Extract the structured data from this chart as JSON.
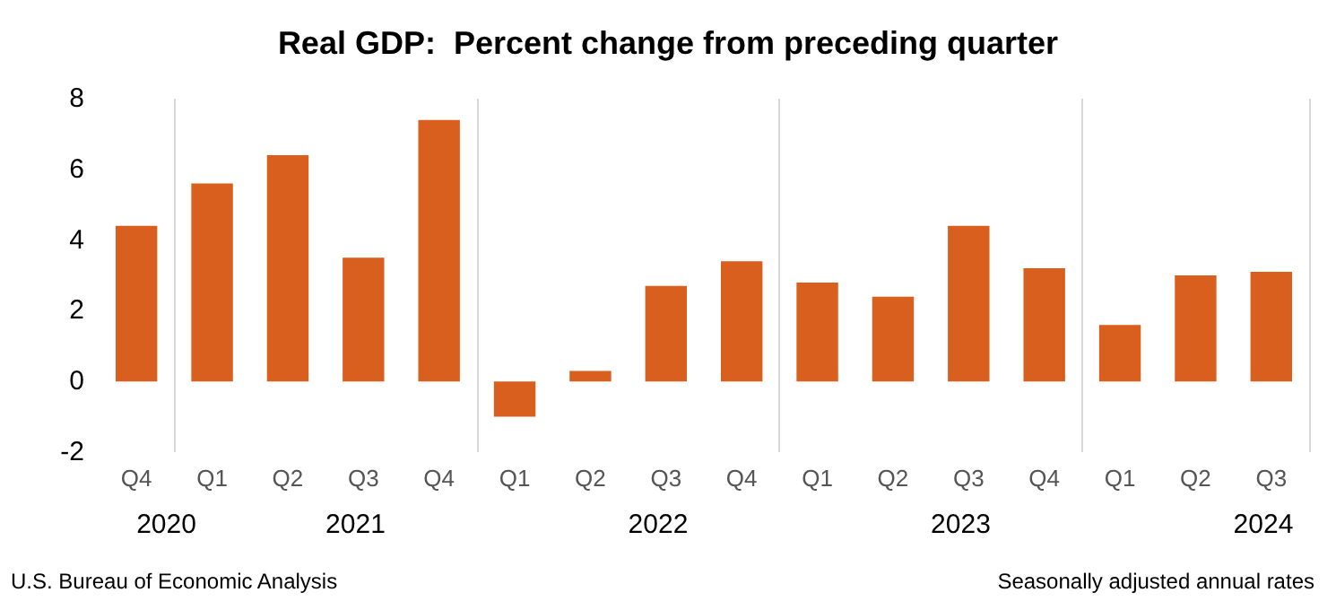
{
  "chart_data": {
    "type": "bar",
    "title": "Real GDP:  Percent change from preceding quarter",
    "categories": [
      "Q4",
      "Q1",
      "Q2",
      "Q3",
      "Q4",
      "Q1",
      "Q2",
      "Q3",
      "Q4",
      "Q1",
      "Q2",
      "Q3",
      "Q4",
      "Q1",
      "Q2",
      "Q3"
    ],
    "values": [
      4.4,
      5.6,
      6.4,
      3.5,
      7.4,
      -1.0,
      0.3,
      2.7,
      3.4,
      2.8,
      2.4,
      4.4,
      3.2,
      1.6,
      3.0,
      3.1
    ],
    "color": "#d95f1e",
    "ylim": [
      -2,
      8
    ],
    "yticks": [
      -2,
      0,
      2,
      4,
      6,
      8
    ],
    "grid": "x",
    "annotations": [
      "2020",
      "2021",
      "2022",
      "2023",
      "2024",
      "U.S. Bureau of Economic Analysis",
      "Seasonally adjusted annual rates"
    ]
  }
}
